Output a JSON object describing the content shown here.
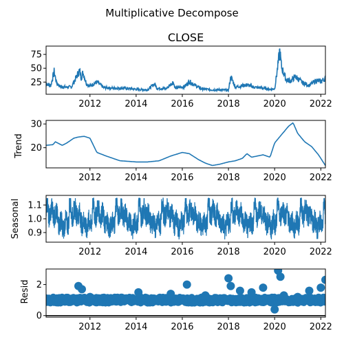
{
  "figure": {
    "suptitle": "Multiplicative Decompose"
  },
  "colors": {
    "series": "#1f77b4",
    "axis": "#000000",
    "background": "#ffffff"
  },
  "chart_data": [
    {
      "type": "line",
      "title": "CLOSE",
      "ylabel": "",
      "xlim": [
        2010.1,
        2022.2
      ],
      "ylim": [
        3,
        90
      ],
      "xticks": [
        2012,
        2014,
        2016,
        2018,
        2020,
        2022
      ],
      "yticks": [
        25,
        50,
        75
      ],
      "grid": false,
      "series": [
        {
          "values_x": [
            2010.1,
            2010.3,
            2010.45,
            2010.55,
            2010.7,
            2010.9,
            2011.2,
            2011.55,
            2011.62,
            2011.7,
            2011.85,
            2012.0,
            2012.3,
            2012.6,
            2013.0,
            2013.5,
            2014.0,
            2014.5,
            2014.8,
            2014.9,
            2015.3,
            2015.6,
            2015.7,
            2016.1,
            2016.3,
            2016.8,
            2017.3,
            2017.7,
            2018.0,
            2018.1,
            2018.3,
            2018.8,
            2019.1,
            2019.5,
            2019.8,
            2020.0,
            2020.15,
            2020.22,
            2020.3,
            2020.5,
            2020.7,
            2020.9,
            2021.2,
            2021.5,
            2021.8,
            2022.0,
            2022.2
          ],
          "values_y": [
            23,
            18,
            44,
            24,
            17,
            16,
            16,
            46,
            33,
            42,
            22,
            18,
            25,
            15,
            14,
            14,
            12,
            11,
            22,
            14,
            13,
            25,
            14,
            17,
            26,
            13,
            11,
            11,
            10,
            35,
            16,
            20,
            16,
            14,
            12,
            13,
            57,
            82,
            52,
            29,
            27,
            35,
            24,
            19,
            28,
            26,
            32
          ]
        }
      ]
    },
    {
      "type": "line",
      "title": "",
      "ylabel": "Trend",
      "xlim": [
        2010.1,
        2022.2
      ],
      "ylim": [
        11.5,
        31.5
      ],
      "xticks": [
        2012,
        2014,
        2016,
        2018,
        2020,
        2022
      ],
      "yticks": [
        20,
        30
      ],
      "grid": false,
      "series": [
        {
          "values_x": [
            2010.1,
            2010.4,
            2010.5,
            2010.8,
            2011.0,
            2011.3,
            2011.5,
            2011.75,
            2012.0,
            2012.3,
            2012.7,
            2013.3,
            2014.0,
            2014.5,
            2015.0,
            2015.5,
            2016.0,
            2016.3,
            2016.7,
            2017.0,
            2017.3,
            2017.6,
            2018.0,
            2018.3,
            2018.6,
            2018.8,
            2019.0,
            2019.5,
            2019.8,
            2020.0,
            2020.3,
            2020.6,
            2020.8,
            2021.0,
            2021.3,
            2021.6,
            2021.9,
            2022.2
          ],
          "values_y": [
            21.0,
            21.3,
            22.5,
            21.0,
            22.0,
            24.0,
            24.5,
            24.8,
            24.0,
            18.0,
            16.5,
            14.5,
            14.0,
            14.0,
            14.5,
            16.5,
            18.0,
            17.5,
            15.0,
            13.5,
            12.5,
            13.0,
            14.0,
            14.5,
            15.5,
            17.5,
            16.0,
            17.0,
            16.0,
            22.0,
            25.5,
            29.0,
            30.5,
            26.0,
            22.5,
            20.5,
            17.0,
            12.5
          ]
        }
      ]
    },
    {
      "type": "line",
      "title": "",
      "ylabel": "Seasonal",
      "xlim": [
        2010.1,
        2022.2
      ],
      "ylim": [
        0.83,
        1.17
      ],
      "xticks": [
        2012,
        2014,
        2016,
        2018,
        2020,
        2022
      ],
      "yticks": [
        0.9,
        1.0,
        1.1
      ],
      "grid": false,
      "series": [
        {
          "pattern": "yearly periodic",
          "range_min": 0.85,
          "range_max": 1.15
        }
      ]
    },
    {
      "type": "scatter",
      "title": "",
      "ylabel": "Resid",
      "xlim": [
        2010.1,
        2022.2
      ],
      "ylim": [
        -0.1,
        3.0
      ],
      "xticks": [
        2012,
        2014,
        2016,
        2018,
        2020,
        2022
      ],
      "yticks": [
        0,
        2
      ],
      "baseline": 0,
      "grid": false,
      "series": [
        {
          "values_x": [
            2011.5,
            2011.65,
            2012.0,
            2013.5,
            2014.1,
            2015.5,
            2016.2,
            2017.0,
            2018.0,
            2018.1,
            2018.5,
            2019.0,
            2019.5,
            2020.0,
            2020.15,
            2020.25,
            2020.4,
            2021.0,
            2021.5,
            2022.0,
            2022.2
          ],
          "values_y": [
            1.9,
            1.7,
            1.2,
            1.1,
            1.5,
            1.4,
            2.0,
            1.3,
            2.4,
            1.9,
            1.6,
            1.5,
            1.8,
            0.4,
            2.9,
            2.5,
            1.3,
            1.2,
            1.6,
            1.8,
            2.3
          ],
          "typical_band": [
            0.8,
            1.2
          ]
        }
      ]
    }
  ]
}
